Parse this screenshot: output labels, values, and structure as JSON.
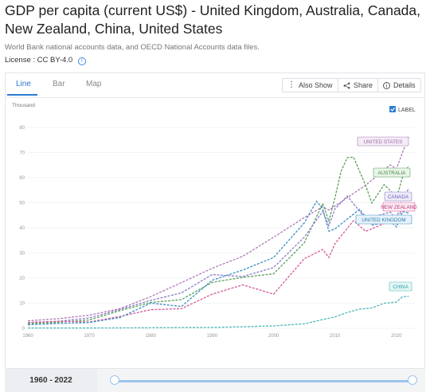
{
  "page": {
    "title": "GDP per capita (current US$) - United Kingdom, Australia, Canada, New Zealand, China, United States",
    "source": "World Bank national accounts data, and OECD National Accounts data files.",
    "license_label": "License : CC BY-4.0",
    "info_glyph": "i"
  },
  "tabs": [
    {
      "label": "Line",
      "active": true
    },
    {
      "label": "Bar",
      "active": false
    },
    {
      "label": "Map",
      "active": false
    }
  ],
  "toolbar": {
    "also_show": "Also Show",
    "share": "Share",
    "details": "Details"
  },
  "label_toggle": {
    "text": "LABEL",
    "checked": true
  },
  "range": {
    "label": "1960 - 2022",
    "start": 1960,
    "end": 2022
  },
  "chart_data": {
    "type": "line",
    "unit_label": "Thousand",
    "xlim": [
      1960,
      2023
    ],
    "ylim": [
      0,
      80
    ],
    "x_ticks": [
      1960,
      1970,
      1980,
      1990,
      2000,
      2010,
      2020
    ],
    "y_ticks": [
      0,
      10,
      20,
      30,
      40,
      50,
      60,
      70,
      80
    ],
    "series": [
      {
        "name": "UNITED STATES",
        "color": "#b07ab8",
        "label_color": "#a269ad",
        "label_bg": "#f4ecf6",
        "x": [
          1960,
          1965,
          1970,
          1975,
          1980,
          1985,
          1990,
          1995,
          2000,
          2005,
          2008,
          2009,
          2010,
          2015,
          2019,
          2020,
          2021,
          2022
        ],
        "y": [
          3.0,
          3.8,
          5.2,
          7.8,
          12.6,
          18.2,
          23.9,
          28.7,
          36.3,
          44.1,
          48.4,
          47.1,
          48.7,
          57.0,
          65.1,
          63.5,
          70.2,
          76.4
        ]
      },
      {
        "name": "AUSTRALIA",
        "color": "#5aa05a",
        "label_color": "#3e8b3e",
        "label_bg": "#eaf5ea",
        "x": [
          1960,
          1965,
          1970,
          1975,
          1980,
          1985,
          1990,
          1995,
          2000,
          2005,
          2008,
          2009,
          2010,
          2011,
          2012,
          2013,
          2014,
          2015,
          2016,
          2018,
          2019,
          2020,
          2021,
          2022
        ],
        "y": [
          1.8,
          2.4,
          3.3,
          7.0,
          10.3,
          11.4,
          18.3,
          20.3,
          21.7,
          34.0,
          49.7,
          42.7,
          52.1,
          62.6,
          68.0,
          68.2,
          62.5,
          56.8,
          49.9,
          57.2,
          54.9,
          51.7,
          60.4,
          64.8
        ]
      },
      {
        "name": "CANADA",
        "color": "#8a7fc8",
        "label_color": "#6d62b6",
        "label_bg": "#eeecf8",
        "x": [
          1960,
          1965,
          1970,
          1975,
          1980,
          1985,
          1990,
          1995,
          2000,
          2005,
          2008,
          2009,
          2010,
          2012,
          2015,
          2019,
          2020,
          2021,
          2022
        ],
        "y": [
          2.3,
          2.8,
          4.1,
          7.5,
          11.1,
          14.1,
          21.4,
          20.6,
          24.2,
          36.3,
          46.6,
          40.9,
          47.6,
          52.7,
          43.6,
          46.3,
          43.5,
          52.4,
          55.5
        ]
      },
      {
        "name": "NEW ZEALAND",
        "color": "#d45a9a",
        "label_color": "#c1407f",
        "label_bg": "#fbe9f2",
        "x": [
          1960,
          1965,
          1970,
          1975,
          1980,
          1985,
          1990,
          1995,
          2000,
          2005,
          2008,
          2009,
          2010,
          2013,
          2015,
          2019,
          2020,
          2021,
          2022
        ],
        "y": [
          2.3,
          2.8,
          2.5,
          4.7,
          7.4,
          7.8,
          13.6,
          17.3,
          13.6,
          27.7,
          31.4,
          28.2,
          33.7,
          42.9,
          38.6,
          42.8,
          41.6,
          48.8,
          48.5
        ]
      },
      {
        "name": "UNITED KINGDOM",
        "color": "#3f8fc4",
        "label_color": "#2b78ad",
        "label_bg": "#e7f2fa",
        "x": [
          1960,
          1965,
          1970,
          1975,
          1980,
          1985,
          1990,
          1995,
          2000,
          2005,
          2007,
          2008,
          2009,
          2010,
          2014,
          2016,
          2019,
          2020,
          2021,
          2022
        ],
        "y": [
          1.4,
          1.9,
          2.3,
          4.3,
          10.0,
          8.7,
          19.1,
          23.2,
          28.2,
          42.0,
          50.6,
          47.5,
          38.7,
          39.6,
          47.4,
          41.1,
          42.7,
          40.4,
          46.5,
          45.9
        ]
      },
      {
        "name": "CHINA",
        "color": "#4cb8b8",
        "label_color": "#2ea3a3",
        "label_bg": "#e5f6f6",
        "x": [
          1960,
          1970,
          1980,
          1985,
          1990,
          1995,
          2000,
          2005,
          2008,
          2010,
          2012,
          2014,
          2016,
          2018,
          2019,
          2020,
          2021,
          2022
        ],
        "y": [
          0.09,
          0.11,
          0.19,
          0.29,
          0.32,
          0.61,
          0.96,
          1.75,
          3.47,
          4.55,
          6.3,
          7.64,
          8.09,
          9.98,
          10.2,
          10.4,
          12.6,
          12.7
        ]
      }
    ]
  }
}
